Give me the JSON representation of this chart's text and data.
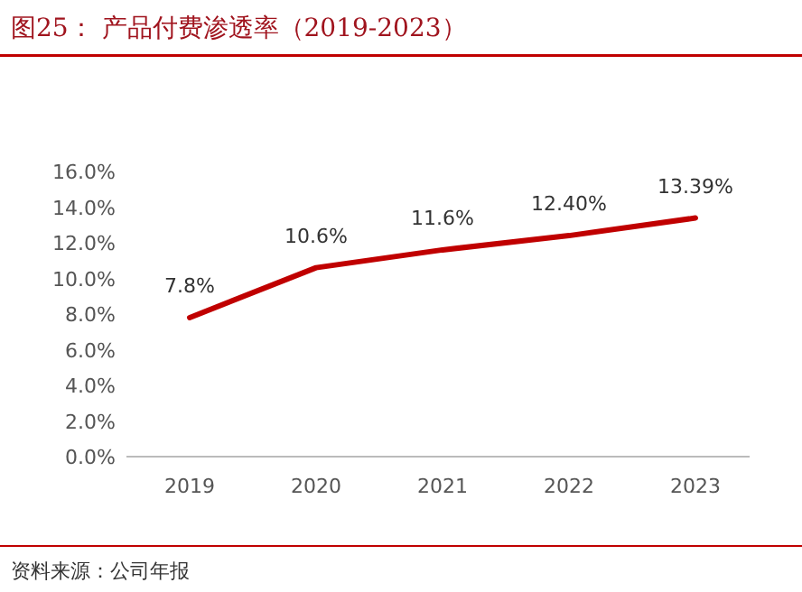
{
  "chart_data": {
    "type": "line",
    "title": "图25：  产品付费渗透率（2019-2023）",
    "categories": [
      "2019",
      "2020",
      "2021",
      "2022",
      "2023"
    ],
    "series": [
      {
        "color": "#c00000",
        "values": [
          7.8,
          10.6,
          11.6,
          12.4,
          13.39
        ],
        "value_labels": [
          "7.8%",
          "10.6%",
          "11.6%",
          "12.40%",
          "13.39%"
        ]
      }
    ],
    "ylim": [
      0,
      16
    ],
    "yticks": [
      {
        "value": 0,
        "label": "0.0%"
      },
      {
        "value": 2,
        "label": "2.0%"
      },
      {
        "value": 4,
        "label": "4.0%"
      },
      {
        "value": 6,
        "label": "6.0%"
      },
      {
        "value": 8,
        "label": "8.0%"
      },
      {
        "value": 10,
        "label": "10.0%"
      },
      {
        "value": 12,
        "label": "12.0%"
      },
      {
        "value": 14,
        "label": "14.0%"
      },
      {
        "value": 16,
        "label": "16.0%"
      }
    ],
    "grid": false,
    "marker": "none",
    "line_style": "solid",
    "annotations": [
      "资料来源：公司年报"
    ]
  }
}
